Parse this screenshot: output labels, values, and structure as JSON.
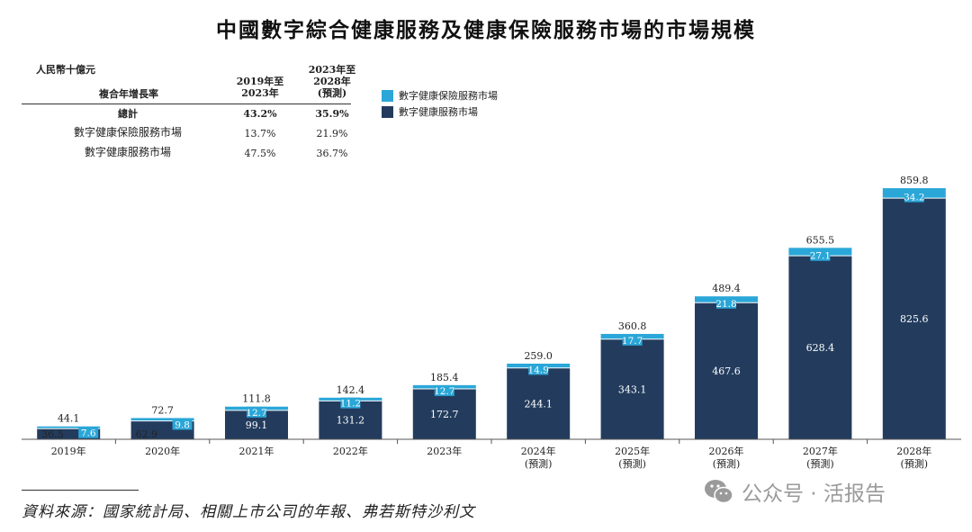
{
  "title": "中國數字綜合健康服務及健康保險服務市場的市場規模",
  "cagr_table": {
    "unit": "人民幣十億元",
    "row_header": "複合年增長率",
    "col1_header": "2019年至\n2023年",
    "col2_header": "2023年至\n2028年\n(預測)",
    "rows": [
      {
        "label": "總計",
        "v1": "43.2%",
        "v2": "35.9%"
      },
      {
        "label": "數字健康保險服務市場",
        "v1": "13.7%",
        "v2": "21.9%"
      },
      {
        "label": "數字健康服務市場",
        "v1": "47.5%",
        "v2": "36.7%"
      }
    ]
  },
  "colors": {
    "insurance": "#2aa7d8",
    "health": "#233c5e"
  },
  "chart_data": {
    "type": "bar",
    "stacked": true,
    "title": "中國數字綜合健康服務及健康保險服務市場的市場規模",
    "unit": "人民幣十億元",
    "categories": [
      "2019年",
      "2020年",
      "2021年",
      "2022年",
      "2023年",
      "2024年",
      "2025年",
      "2026年",
      "2027年",
      "2028年"
    ],
    "category_sublabels": [
      "",
      "",
      "",
      "",
      "",
      "(預測)",
      "(預測)",
      "(預測)",
      "(預測)",
      "(預測)"
    ],
    "series": [
      {
        "name": "數字健康服務市場",
        "values": [
          36.5,
          62.9,
          99.1,
          131.2,
          172.7,
          244.1,
          343.1,
          467.6,
          628.4,
          825.6
        ]
      },
      {
        "name": "數字健康保險服務市場",
        "values": [
          7.6,
          9.8,
          12.7,
          11.2,
          12.7,
          14.9,
          17.7,
          21.8,
          27.1,
          34.2
        ]
      }
    ],
    "totals": [
      44.1,
      72.7,
      111.8,
      142.4,
      185.4,
      259.0,
      360.8,
      489.4,
      655.5,
      859.8
    ],
    "total_labels": [
      "44.1",
      "72.7",
      "111.8",
      "142.4",
      "185.4",
      "259.0",
      "360.8",
      "489.4",
      "655.5",
      "859.8"
    ],
    "health_labels": [
      "36.5",
      "62.9",
      "99.1",
      "131.2",
      "172.7",
      "244.1",
      "343.1",
      "467.6",
      "628.4",
      "825.6"
    ],
    "insurance_labels": [
      "7.6",
      "9.8",
      "12.7",
      "11.2",
      "12.7",
      "14.9",
      "17.7",
      "21.8",
      "27.1",
      "34.2"
    ],
    "legend": [
      "數字健康保險服務市場",
      "數字健康服務市場"
    ],
    "ylim": [
      0,
      860
    ]
  },
  "source": "資料來源：國家統計局、相關上市公司的年報、弗若斯特沙利文",
  "watermark": "公众号 · 活报告"
}
